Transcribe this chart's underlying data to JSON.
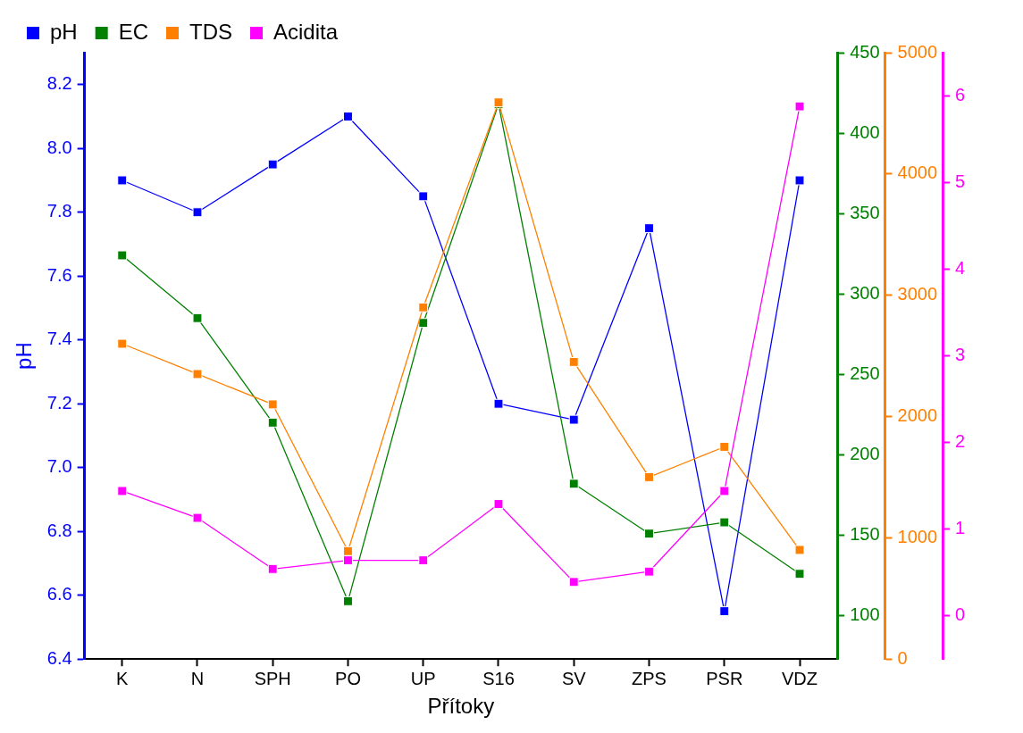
{
  "chart_data": [
    {
      "type": "line",
      "xlabel": "Přítoky",
      "ylabel": "pH",
      "categories": [
        "K",
        "N",
        "SPH",
        "PO",
        "UP",
        "S16",
        "SV",
        "ZPS",
        "PSR",
        "VDZ"
      ],
      "series": [
        {
          "name": "pH",
          "color": "#0000ff",
          "values": [
            7.9,
            7.8,
            7.95,
            8.1,
            7.85,
            7.2,
            7.15,
            7.75,
            6.55,
            7.9
          ]
        },
        {
          "name": "EC",
          "color": "#008000",
          "axis": "y2",
          "values": [
            324,
            285,
            220,
            109,
            282,
            418,
            182,
            151,
            158,
            126
          ]
        },
        {
          "name": "TDS",
          "color": "#ff8000",
          "axis": "y3",
          "values": [
            2600,
            2350,
            2100,
            890,
            2900,
            4590,
            2450,
            1500,
            1750,
            900
          ]
        }
      ],
      "ylim": [
        6.4,
        8.3
      ],
      "yticks": [
        6.4,
        6.6,
        6.8,
        {
          "value": 7,
          "label": "7.0"
        },
        7.2,
        7.4,
        7.6,
        7.8,
        {
          "value": 8,
          "label": "8.0"
        },
        8.2
      ],
      "y2lim": [
        73,
        450
      ],
      "y2ticks": [
        100,
        150,
        200,
        250,
        300,
        350,
        400,
        450
      ],
      "y3lim": [
        0,
        5000
      ],
      "y3ticks": [
        0,
        1000,
        2000,
        3000,
        4000,
        5000
      ],
      "marker": "square",
      "line_style": "solid",
      "grid": false,
      "legend": "top left"
    },
    {
      "type": "line",
      "categories": [
        null,
        null,
        null,
        null,
        null,
        null,
        null,
        null,
        null,
        null
      ],
      "series": [
        {
          "name": "Acidita",
          "color": "#ff00ff",
          "values": [
            1.44,
            1.13,
            0.54,
            0.64,
            0.64,
            1.29,
            0.39,
            0.51,
            1.44,
            5.88
          ]
        }
      ],
      "ylim": [
        -0.5,
        6.5
      ],
      "yticks": [
        0,
        1,
        2,
        3,
        4,
        5,
        6
      ],
      "tick_labels": "y",
      "marker": "square",
      "line_style": "solid",
      "grid": false,
      "legend": "top left"
    }
  ]
}
